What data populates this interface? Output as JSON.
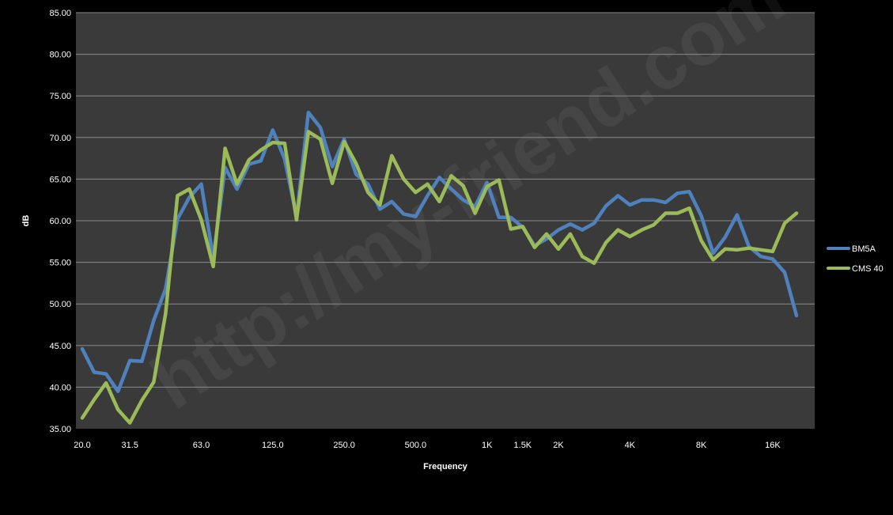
{
  "chart_data": {
    "type": "line",
    "title": "",
    "xlabel": "Frequency",
    "ylabel": "dB",
    "ylim": [
      35,
      85
    ],
    "ytick_labels": [
      "35.00",
      "40.00",
      "45.00",
      "50.00",
      "55.00",
      "60.00",
      "65.00",
      "70.00",
      "75.00",
      "80.00",
      "85.00"
    ],
    "xtick_labels": [
      "20.0",
      "31.5",
      "63.0",
      "125.0",
      "250.0",
      "500.0",
      "1K",
      "1.5K",
      "2K",
      "4K",
      "8K",
      "16K"
    ],
    "xtick_positions": [
      0,
      4,
      10,
      16,
      22,
      28,
      34,
      37,
      40,
      46,
      52,
      58
    ],
    "grid": "horizontal",
    "legend_position": "right",
    "watermark": "http://my-friend.com",
    "colors": {
      "plot_background": "#3a3a3a",
      "page_background": "#000000",
      "gridline": "#8a8a8a"
    },
    "series": [
      {
        "name": "BM5A",
        "color": "#4f81bd",
        "values": [
          44.6,
          41.8,
          41.6,
          39.5,
          43.2,
          43.1,
          48.0,
          51.8,
          60.2,
          62.8,
          64.4,
          55.5,
          66.4,
          63.8,
          66.8,
          67.2,
          70.9,
          67.4,
          60.5,
          73.0,
          71.2,
          66.5,
          69.8,
          65.6,
          64.4,
          61.4,
          62.3,
          60.8,
          60.5,
          63.0,
          65.2,
          63.8,
          62.5,
          61.7,
          64.6,
          60.4,
          60.4,
          59.2,
          57.0,
          57.8,
          58.9,
          59.6,
          58.9,
          59.7,
          61.8,
          63.0,
          61.9,
          62.5,
          62.5,
          62.2,
          63.3,
          63.5,
          60.6,
          56.1,
          58.0,
          60.7,
          56.9,
          55.7,
          55.4,
          53.8,
          48.6
        ]
      },
      {
        "name": "CMS 40",
        "color": "#9bbb59",
        "values": [
          36.3,
          38.5,
          40.5,
          37.3,
          35.7,
          38.4,
          40.6,
          48.8,
          63.0,
          63.8,
          60.1,
          54.5,
          68.7,
          64.4,
          67.3,
          68.5,
          69.4,
          69.3,
          60.1,
          70.7,
          69.8,
          64.5,
          69.5,
          66.9,
          63.4,
          61.9,
          67.8,
          65.0,
          63.4,
          64.4,
          62.3,
          65.4,
          64.2,
          60.9,
          64.1,
          64.9,
          59.0,
          59.3,
          56.8,
          58.4,
          56.6,
          58.4,
          55.7,
          54.9,
          57.4,
          58.9,
          58.1,
          58.9,
          59.5,
          60.9,
          60.9,
          61.5,
          57.6,
          55.3,
          56.6,
          56.5,
          56.7,
          56.5,
          56.3,
          59.7,
          60.9
        ]
      }
    ]
  }
}
